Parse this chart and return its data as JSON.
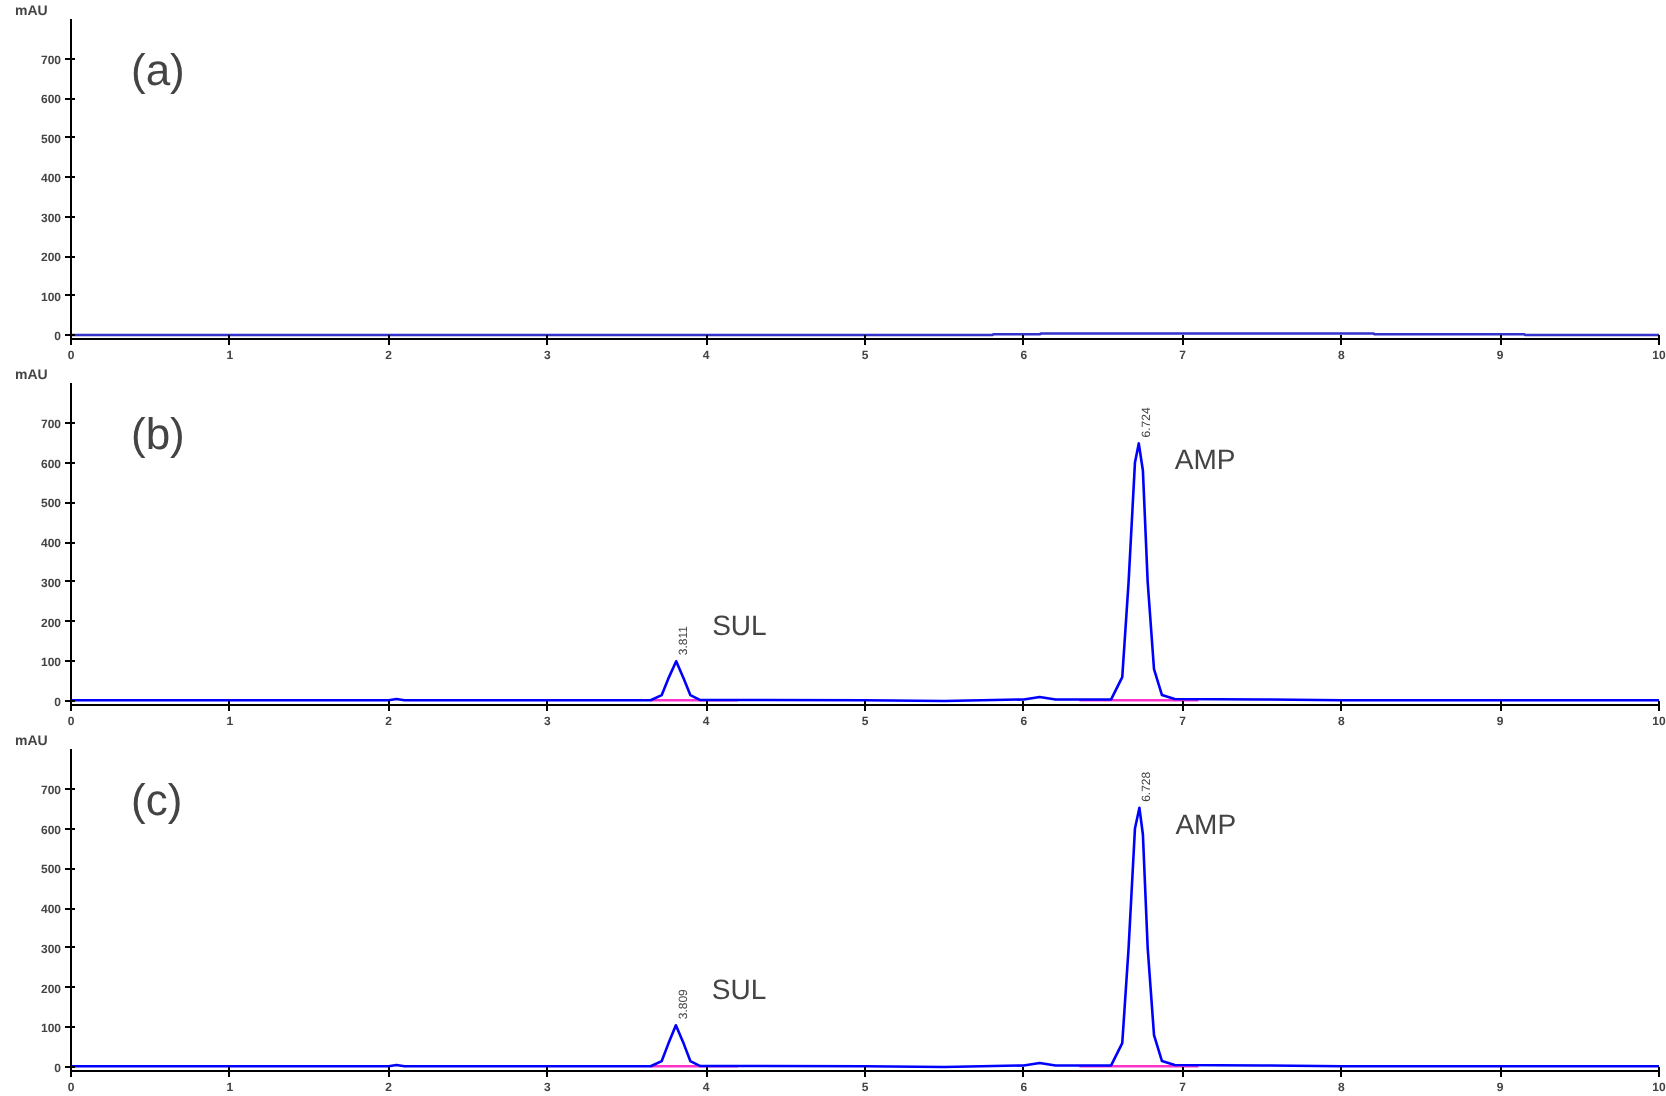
{
  "chart_data": [
    {
      "type": "line",
      "title": "(a)",
      "ylabel": "mAU",
      "xlim": [
        0,
        10
      ],
      "ylim": [
        -10,
        800
      ],
      "xticks": [
        0,
        1,
        2,
        3,
        4,
        5,
        6,
        7,
        8,
        9,
        10
      ],
      "yticks": [
        0,
        100,
        200,
        300,
        400,
        500,
        600,
        700
      ],
      "grid": false,
      "series": [
        {
          "color": "#3333cc",
          "x": [
            0,
            5.8,
            5.81,
            6.1,
            6.11,
            8.2,
            8.21,
            9.15,
            9.16,
            10
          ],
          "values": [
            0,
            0,
            2,
            2,
            4,
            4,
            2,
            2,
            0,
            0
          ]
        }
      ]
    },
    {
      "type": "line",
      "title": "(b)",
      "ylabel": "mAU",
      "xlim": [
        0,
        10
      ],
      "ylim": [
        -10,
        800
      ],
      "xticks": [
        0,
        1,
        2,
        3,
        4,
        5,
        6,
        7,
        8,
        9,
        10
      ],
      "yticks": [
        0,
        100,
        200,
        300,
        400,
        500,
        600,
        700
      ],
      "grid": false,
      "series": [
        {
          "color": "#ff33cc",
          "x": [
            3.65,
            4.2,
            4.21,
            6.35,
            7.1
          ],
          "values": [
            2,
            2,
            null,
            2,
            2
          ]
        },
        {
          "color": "#0000ff",
          "x": [
            0,
            2.0,
            2.05,
            2.1,
            3.65,
            3.72,
            3.76,
            3.811,
            3.86,
            3.9,
            3.96,
            5.0,
            5.5,
            6.0,
            6.1,
            6.2,
            6.55,
            6.62,
            6.66,
            6.7,
            6.724,
            6.75,
            6.78,
            6.82,
            6.87,
            6.95,
            7.5,
            8.0,
            10
          ],
          "values": [
            2,
            2,
            5,
            2,
            2,
            15,
            55,
            100,
            55,
            15,
            3,
            2,
            0,
            4,
            10,
            4,
            4,
            60,
            300,
            600,
            648,
            580,
            300,
            80,
            15,
            5,
            4,
            2,
            2
          ]
        }
      ],
      "annotations": [
        {
          "text": "3.811",
          "x": 3.811,
          "y": 100
        },
        {
          "text": "SUL",
          "x": 3.811,
          "y": 100
        },
        {
          "text": "6.724",
          "x": 6.724,
          "y": 648
        },
        {
          "text": "AMP",
          "x": 6.724,
          "y": 648
        }
      ]
    },
    {
      "type": "line",
      "title": "(c)",
      "ylabel": "mAU",
      "xlim": [
        0,
        10
      ],
      "ylim": [
        -10,
        800
      ],
      "xticks": [
        0,
        1,
        2,
        3,
        4,
        5,
        6,
        7,
        8,
        9,
        10
      ],
      "yticks": [
        0,
        100,
        200,
        300,
        400,
        500,
        600,
        700
      ],
      "grid": false,
      "series": [
        {
          "color": "#ff33cc",
          "x": [
            3.65,
            4.2,
            4.21,
            6.35,
            7.1
          ],
          "values": [
            2,
            2,
            null,
            2,
            2
          ]
        },
        {
          "color": "#0000ff",
          "x": [
            0,
            2.0,
            2.05,
            2.1,
            3.65,
            3.72,
            3.76,
            3.809,
            3.86,
            3.9,
            3.96,
            5.0,
            5.5,
            6.0,
            6.1,
            6.2,
            6.55,
            6.62,
            6.66,
            6.7,
            6.728,
            6.75,
            6.78,
            6.82,
            6.87,
            6.95,
            7.5,
            8.0,
            10
          ],
          "values": [
            2,
            2,
            5,
            2,
            2,
            15,
            57,
            105,
            57,
            15,
            3,
            2,
            0,
            4,
            10,
            4,
            4,
            60,
            300,
            600,
            652,
            585,
            300,
            80,
            15,
            5,
            4,
            2,
            2
          ]
        }
      ],
      "annotations": [
        {
          "text": "3.809",
          "x": 3.809,
          "y": 105
        },
        {
          "text": "SUL",
          "x": 3.809,
          "y": 105
        },
        {
          "text": "6.728",
          "x": 6.728,
          "y": 652
        },
        {
          "text": "AMP",
          "x": 6.728,
          "y": 652
        }
      ]
    }
  ]
}
